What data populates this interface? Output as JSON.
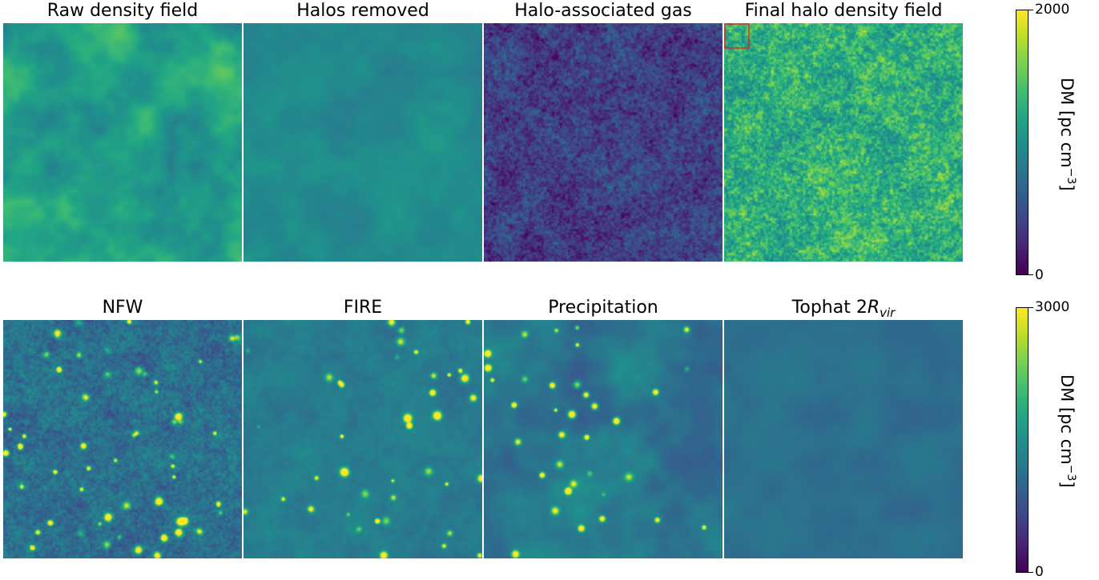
{
  "chart_data": {
    "type": "heatmap",
    "colormap": "viridis",
    "rows": [
      {
        "panels": [
          {
            "title": "Raw density field",
            "mean_dm": 1150,
            "variation": 260,
            "blob_scale": "large",
            "hotspots": 0
          },
          {
            "title": "Halos removed",
            "mean_dm": 950,
            "variation": 110,
            "blob_scale": "large",
            "hotspots": 0
          },
          {
            "title": "Halo-associated gas",
            "mean_dm": 380,
            "variation": 260,
            "blob_scale": "small",
            "hotspots": 0
          },
          {
            "title": "Final halo density field",
            "mean_dm": 1280,
            "variation": 360,
            "blob_scale": "small",
            "hotspots": 0,
            "highlight_box": true
          }
        ],
        "colorbar": {
          "label": "DM [pc cm",
          "label_exponent": "−3",
          "label_close": "]",
          "min": 0,
          "max": 2000,
          "tick_min": "0",
          "tick_max": "2000"
        }
      },
      {
        "panels": [
          {
            "title_main": "NFW",
            "title_sub": "",
            "mean_dm": 1100,
            "variation": 300,
            "blob_scale": "small",
            "hotspots": 55
          },
          {
            "title_main": "FIRE",
            "title_sub": "",
            "mean_dm": 1250,
            "variation": 160,
            "blob_scale": "medium",
            "hotspots": 40
          },
          {
            "title_main": "Precipitation",
            "title_sub": "",
            "mean_dm": 1200,
            "variation": 230,
            "blob_scale": "large",
            "hotspots": 35
          },
          {
            "title_main": "Tophat 2",
            "title_italic": "R",
            "title_sub": "vir",
            "mean_dm": 1100,
            "variation": 110,
            "blob_scale": "large",
            "hotspots": 0
          }
        ],
        "colorbar": {
          "label": "DM [pc cm",
          "label_exponent": "−3",
          "label_close": "]",
          "min": 0,
          "max": 3000,
          "tick_min": "0",
          "tick_max": "3000"
        }
      }
    ],
    "grid": false
  }
}
